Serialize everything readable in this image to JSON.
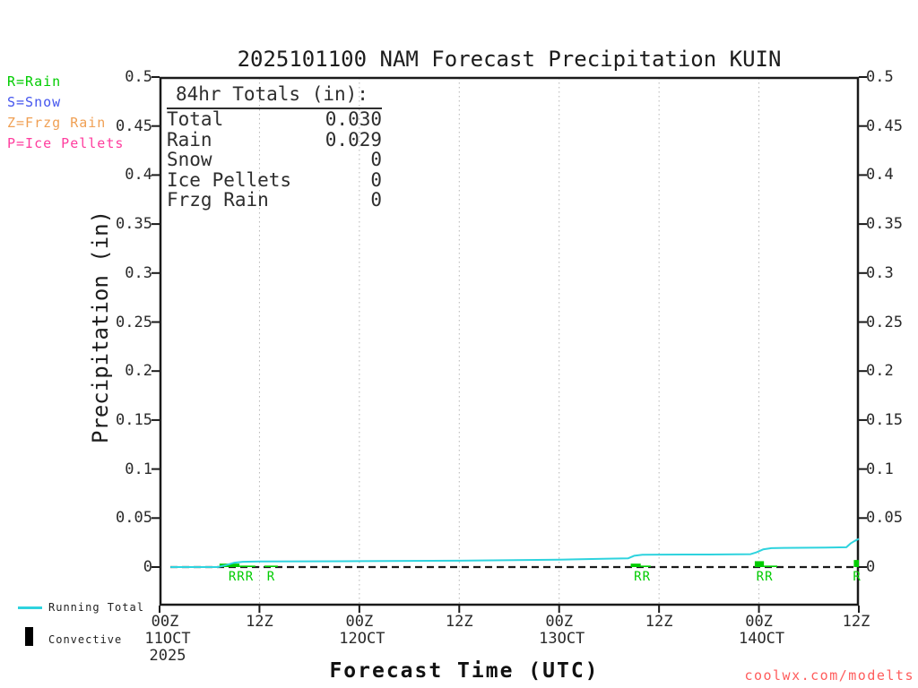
{
  "title": "2025101100 NAM Forecast Precipitation KUIN",
  "colors": {
    "axis": "#1a1a1a",
    "gridline": "#b5b5b5",
    "rain": "#00cc00",
    "snow": "#4455ee",
    "frzg_rain": "#f0a054",
    "ice_pellets": "#ff3d9e",
    "running_total": "#2ed3de",
    "convective": "#000000",
    "watermark": "#ff5c5c"
  },
  "ptype_legend": [
    {
      "label": "R=Rain",
      "color_key": "rain"
    },
    {
      "label": "S=Snow",
      "color_key": "snow"
    },
    {
      "label": "Z=Frzg Rain",
      "color_key": "frzg_rain"
    },
    {
      "label": "P=Ice Pellets",
      "color_key": "ice_pellets"
    }
  ],
  "totals_box": {
    "heading": "84hr Totals (in):",
    "rows": [
      {
        "label": "Total",
        "value": "0.030"
      },
      {
        "label": "Rain",
        "value": "0.029"
      },
      {
        "label": "Snow",
        "value": "0"
      },
      {
        "label": "Ice Pellets",
        "value": "0"
      },
      {
        "label": "Frzg Rain",
        "value": "0"
      }
    ]
  },
  "y_axis": {
    "title": "Precipitation (in)",
    "tick_values": [
      0,
      0.05,
      0.1,
      0.15,
      0.2,
      0.25,
      0.3,
      0.35,
      0.4,
      0.45,
      0.5
    ],
    "tick_labels": [
      "0",
      "0.05",
      "0.1",
      "0.15",
      "0.2",
      "0.25",
      "0.3",
      "0.35",
      "0.4",
      "0.45",
      "0.5"
    ]
  },
  "x_axis": {
    "title": "Forecast Time (UTC)",
    "ticks": [
      {
        "hour": 0,
        "label": "00Z",
        "date": "11OCT",
        "year": "2025",
        "dx": 6
      },
      {
        "hour": 12,
        "label": "12Z"
      },
      {
        "hour": 24,
        "label": "00Z",
        "date": "12OCT"
      },
      {
        "hour": 36,
        "label": "12Z"
      },
      {
        "hour": 48,
        "label": "00Z",
        "date": "13OCT"
      },
      {
        "hour": 60,
        "label": "12Z"
      },
      {
        "hour": 72,
        "label": "00Z",
        "date": "14OCT"
      },
      {
        "hour": 84,
        "label": "12Z",
        "dx": -3
      }
    ]
  },
  "bottom_legend": {
    "running_total_label": "Running Total",
    "convective_label": "Convective"
  },
  "watermark": "coolwx.com/modelts",
  "chart_data": {
    "type": "line",
    "title": "2025101100 NAM Forecast Precipitation KUIN",
    "xlabel": "Forecast Time (UTC)",
    "ylabel": "Precipitation (in)",
    "x_unit": "forecast hour from 00Z 11 Oct 2025",
    "x_range_hours": [
      0,
      84
    ],
    "ylim": [
      0,
      0.5
    ],
    "grid": "vertical-dotted",
    "x_gridline_hours": [
      12,
      24,
      36,
      48,
      60,
      72
    ],
    "zero_line": "dashed-black",
    "series": [
      {
        "name": "Running Total",
        "color_key": "running_total",
        "points": [
          [
            1.3,
            0
          ],
          [
            7,
            0
          ],
          [
            8,
            0.002
          ],
          [
            9,
            0.0045
          ],
          [
            10,
            0.0054
          ],
          [
            12,
            0.0057
          ],
          [
            24,
            0.006
          ],
          [
            36,
            0.0065
          ],
          [
            48,
            0.0076
          ],
          [
            54,
            0.0086
          ],
          [
            56.3,
            0.009
          ],
          [
            57,
            0.0115
          ],
          [
            58,
            0.0125
          ],
          [
            60,
            0.0127
          ],
          [
            66,
            0.0128
          ],
          [
            71,
            0.0132
          ],
          [
            71.7,
            0.015
          ],
          [
            72.5,
            0.018
          ],
          [
            73.5,
            0.0193
          ],
          [
            75,
            0.0196
          ],
          [
            80,
            0.0198
          ],
          [
            82.5,
            0.0202
          ],
          [
            83,
            0.024
          ],
          [
            83.5,
            0.0267
          ],
          [
            84,
            0.0288
          ]
        ]
      }
    ],
    "precip_bars": [
      {
        "start": 7.2,
        "end": 9.6,
        "amount": 0.0035,
        "type": "rain"
      },
      {
        "start": 9.6,
        "end": 11.5,
        "amount": 0.0015,
        "type": "rain"
      },
      {
        "start": 12.6,
        "end": 14.2,
        "amount": 0.0015,
        "type": "rain"
      },
      {
        "start": 56.6,
        "end": 57.8,
        "amount": 0.0035,
        "type": "rain"
      },
      {
        "start": 57.8,
        "end": 59.0,
        "amount": 0.0015,
        "type": "rain"
      },
      {
        "start": 71.5,
        "end": 72.6,
        "amount": 0.006,
        "type": "rain"
      },
      {
        "start": 72.6,
        "end": 74.2,
        "amount": 0.0015,
        "type": "rain"
      },
      {
        "start": 83.4,
        "end": 84.0,
        "amount": 0.0072,
        "type": "rain"
      }
    ],
    "ptype_markers": [
      {
        "hour": 9.8,
        "label": "RRR"
      },
      {
        "hour": 13.4,
        "label": "R"
      },
      {
        "hour": 58.0,
        "label": "RR"
      },
      {
        "hour": 72.7,
        "label": "RR"
      },
      {
        "hour": 83.8,
        "label": "R"
      }
    ]
  }
}
